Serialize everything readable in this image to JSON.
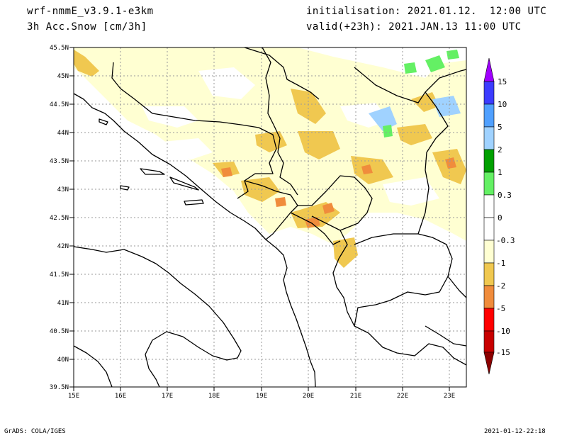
{
  "header": {
    "model": "wrf-nmmE_v3.9.1-e3km",
    "field": "3h Acc.Snow [cm/3h]",
    "init": "initialisation: 2021.01.12.  12:00 UTC",
    "valid": "valid(+23h): 2021.JAN.13 11:00 UTC"
  },
  "axes": {
    "lat_labels": [
      "45.5N",
      "45N",
      "44.5N",
      "44N",
      "43.5N",
      "43N",
      "42.5N",
      "42N",
      "41.5N",
      "41N",
      "40.5N",
      "40N",
      "39.5N"
    ],
    "lon_labels": [
      "15E",
      "16E",
      "17E",
      "18E",
      "19E",
      "20E",
      "21E",
      "22E",
      "23E"
    ]
  },
  "colorbar": {
    "labels": [
      "15",
      "10",
      "5",
      "2",
      "1",
      "0.3",
      "0",
      "-0.3",
      "-1",
      "-2",
      "-5",
      "-10",
      "-15"
    ],
    "colors": [
      "#a000ff",
      "#3c3cff",
      "#50a0ff",
      "#a0d2ff",
      "#00a000",
      "#64f064",
      "#ffffff",
      "#ffffd2",
      "#f0c850",
      "#f08c3c",
      "#ff0000",
      "#c80000",
      "#8c0000"
    ]
  },
  "footer": {
    "left": "GrADS: COLA/IGES",
    "right": "2021-01-12-22:18"
  }
}
